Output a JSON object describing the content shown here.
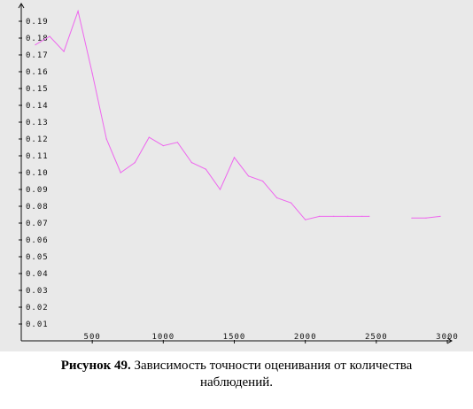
{
  "chart_data": {
    "type": "line",
    "line_color": "#ee66ee",
    "axis_color": "#111111",
    "xlim": [
      0,
      3000
    ],
    "ylim": [
      0,
      0.2
    ],
    "x_ticks": [
      {
        "value": 500,
        "label": "500"
      },
      {
        "value": 1000,
        "label": "1000"
      },
      {
        "value": 1500,
        "label": "1500"
      },
      {
        "value": 2000,
        "label": "2000"
      },
      {
        "value": 2500,
        "label": "2500"
      },
      {
        "value": 3000,
        "label": "3000"
      }
    ],
    "y_ticks": [
      {
        "value": 0.01,
        "label": "0.01"
      },
      {
        "value": 0.02,
        "label": "0.02"
      },
      {
        "value": 0.03,
        "label": "0.03"
      },
      {
        "value": 0.04,
        "label": "0.04"
      },
      {
        "value": 0.05,
        "label": "0.05"
      },
      {
        "value": 0.06,
        "label": "0.06"
      },
      {
        "value": 0.07,
        "label": "0.07"
      },
      {
        "value": 0.08,
        "label": "0.08"
      },
      {
        "value": 0.09,
        "label": "0.09"
      },
      {
        "value": 0.1,
        "label": "0.10"
      },
      {
        "value": 0.11,
        "label": "0.11"
      },
      {
        "value": 0.12,
        "label": "0.12"
      },
      {
        "value": 0.13,
        "label": "0.13"
      },
      {
        "value": 0.14,
        "label": "0.14"
      },
      {
        "value": 0.15,
        "label": "0.15"
      },
      {
        "value": 0.16,
        "label": "0.16"
      },
      {
        "value": 0.17,
        "label": "0.17"
      },
      {
        "value": 0.18,
        "label": "0.18"
      },
      {
        "value": 0.19,
        "label": "0.19"
      }
    ],
    "segments": [
      {
        "points": [
          [
            100,
            0.176
          ],
          [
            200,
            0.181
          ],
          [
            300,
            0.172
          ],
          [
            400,
            0.196
          ],
          [
            500,
            0.159
          ],
          [
            600,
            0.12
          ],
          [
            700,
            0.1
          ],
          [
            800,
            0.106
          ],
          [
            900,
            0.121
          ],
          [
            1000,
            0.116
          ],
          [
            1100,
            0.118
          ],
          [
            1200,
            0.106
          ],
          [
            1300,
            0.102
          ],
          [
            1400,
            0.09
          ],
          [
            1500,
            0.109
          ],
          [
            1600,
            0.098
          ],
          [
            1700,
            0.095
          ],
          [
            1800,
            0.085
          ],
          [
            1900,
            0.082
          ],
          [
            2000,
            0.072
          ],
          [
            2100,
            0.074
          ],
          [
            2200,
            0.074
          ],
          [
            2300,
            0.074
          ],
          [
            2400,
            0.074
          ],
          [
            2450,
            0.074
          ]
        ]
      },
      {
        "points": [
          [
            2750,
            0.073
          ],
          [
            2850,
            0.073
          ],
          [
            2950,
            0.074
          ]
        ]
      }
    ]
  },
  "caption": {
    "label": "Рисунок 49.",
    "text_line1": " Зависимость точности оценивания от количества",
    "text_line2": "наблюдений."
  }
}
